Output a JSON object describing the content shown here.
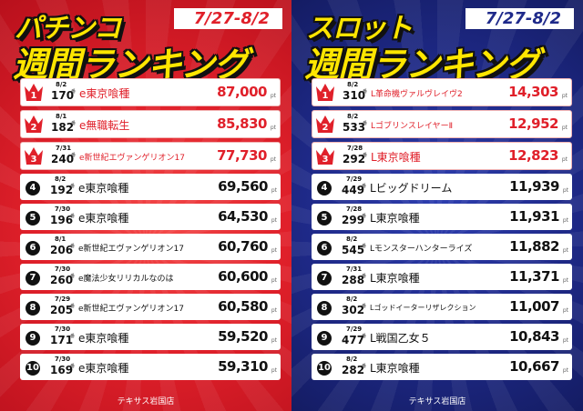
{
  "store": "テキサス岩国店",
  "pachinko": {
    "title_line1": "パチンコ",
    "title_line2": "週間ランキング",
    "date_range": "7/27-8/2",
    "accent": "#e0202a",
    "rows": [
      {
        "rank": "1",
        "date": "8/2",
        "units": "170",
        "machine": "e東京喰種",
        "points": "87,000",
        "unit_label": "番",
        "pt": "pt",
        "crown": true
      },
      {
        "rank": "2",
        "date": "8/1",
        "units": "182",
        "machine": "e無職転生",
        "points": "85,830",
        "unit_label": "番",
        "pt": "pt",
        "crown": true
      },
      {
        "rank": "3",
        "date": "7/31",
        "units": "240",
        "machine": "e新世紀エヴァンゲリオン17",
        "points": "77,730",
        "unit_label": "番",
        "pt": "pt",
        "crown": true
      },
      {
        "rank": "4",
        "date": "8/2",
        "units": "192",
        "machine": "e東京喰種",
        "points": "69,560",
        "unit_label": "番",
        "pt": "pt",
        "crown": false
      },
      {
        "rank": "5",
        "date": "7/30",
        "units": "196",
        "machine": "e東京喰種",
        "points": "64,530",
        "unit_label": "番",
        "pt": "pt",
        "crown": false
      },
      {
        "rank": "6",
        "date": "8/1",
        "units": "206",
        "machine": "e新世紀エヴァンゲリオン17",
        "points": "60,760",
        "unit_label": "番",
        "pt": "pt",
        "crown": false
      },
      {
        "rank": "7",
        "date": "7/30",
        "units": "260",
        "machine": "e魔法少女リリカルなのは",
        "points": "60,600",
        "unit_label": "番",
        "pt": "pt",
        "crown": false
      },
      {
        "rank": "8",
        "date": "7/29",
        "units": "205",
        "machine": "e新世紀エヴァンゲリオン17",
        "points": "60,580",
        "unit_label": "番",
        "pt": "pt",
        "crown": false
      },
      {
        "rank": "9",
        "date": "7/30",
        "units": "171",
        "machine": "e東京喰種",
        "points": "59,520",
        "unit_label": "番",
        "pt": "pt",
        "crown": false
      },
      {
        "rank": "10",
        "date": "7/30",
        "units": "169",
        "machine": "e東京喰種",
        "points": "59,310",
        "unit_label": "番",
        "pt": "pt",
        "crown": false
      }
    ]
  },
  "slot": {
    "title_line1": "スロット",
    "title_line2": "週間ランキング",
    "date_range": "7/27-8/2",
    "accent": "#1f2a8a",
    "rows": [
      {
        "rank": "1",
        "date": "8/2",
        "units": "310",
        "machine": "L革命機ヴァルヴレイヴ2",
        "points": "14,303",
        "unit_label": "番",
        "pt": "pt",
        "crown": true
      },
      {
        "rank": "2",
        "date": "8/2",
        "units": "533",
        "machine": "LゴブリンスレイヤーⅡ",
        "points": "12,952",
        "unit_label": "番",
        "pt": "pt",
        "crown": true
      },
      {
        "rank": "3",
        "date": "7/28",
        "units": "292",
        "machine": "L東京喰種",
        "points": "12,823",
        "unit_label": "番",
        "pt": "pt",
        "crown": true
      },
      {
        "rank": "4",
        "date": "7/29",
        "units": "449",
        "machine": "Lビッグドリーム",
        "points": "11,939",
        "unit_label": "番",
        "pt": "pt",
        "crown": false
      },
      {
        "rank": "5",
        "date": "7/28",
        "units": "299",
        "machine": "L東京喰種",
        "points": "11,931",
        "unit_label": "番",
        "pt": "pt",
        "crown": false
      },
      {
        "rank": "6",
        "date": "8/2",
        "units": "545",
        "machine": "Lモンスターハンターライズ",
        "points": "11,882",
        "unit_label": "番",
        "pt": "pt",
        "crown": false
      },
      {
        "rank": "7",
        "date": "7/31",
        "units": "288",
        "machine": "L東京喰種",
        "points": "11,371",
        "unit_label": "番",
        "pt": "pt",
        "crown": false
      },
      {
        "rank": "8",
        "date": "8/2",
        "units": "302",
        "machine": "Lゴッドイーターリザレクション",
        "points": "11,007",
        "unit_label": "番",
        "pt": "pt",
        "crown": false
      },
      {
        "rank": "9",
        "date": "7/29",
        "units": "477",
        "machine": "L戦国乙女５",
        "points": "10,843",
        "unit_label": "番",
        "pt": "pt",
        "crown": false
      },
      {
        "rank": "10",
        "date": "8/2",
        "units": "282",
        "machine": "L東京喰種",
        "points": "10,667",
        "unit_label": "番",
        "pt": "pt",
        "crown": false
      }
    ]
  }
}
